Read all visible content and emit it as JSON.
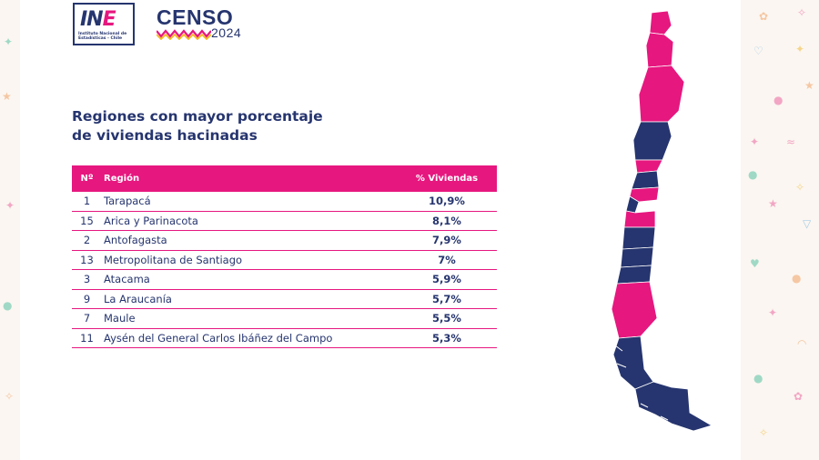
{
  "logos": {
    "ine_mark": "INE",
    "ine_subtitle": "Instituto Nacional de Estadísticas - Chile",
    "censo_word": "CENSO",
    "censo_year": "2024"
  },
  "title": {
    "line1": "Regiones con mayor porcentaje",
    "line2": "de viviendas hacinadas"
  },
  "table": {
    "headers": {
      "num": "Nº",
      "region": "Región",
      "pct": "% Viviendas"
    },
    "rows": [
      {
        "num": "1",
        "region": "Tarapacá",
        "pct": "10,9%"
      },
      {
        "num": "15",
        "region": "Arica y Parinacota",
        "pct": "8,1%"
      },
      {
        "num": "2",
        "region": "Antofagasta",
        "pct": "7,9%"
      },
      {
        "num": "13",
        "region": "Metropolitana de Santiago",
        "pct": "7%"
      },
      {
        "num": "3",
        "region": "Atacama",
        "pct": "5,9%"
      },
      {
        "num": "9",
        "region": "La Araucanía",
        "pct": "5,7%"
      },
      {
        "num": "7",
        "region": "Maule",
        "pct": "5,5%"
      },
      {
        "num": "11",
        "region": "Aysén del General Carlos Ibáñez del Campo",
        "pct": "5,3%"
      }
    ]
  },
  "colors": {
    "navy": "#26356f",
    "magenta": "#e6177f"
  },
  "icons": [
    "chile-map-icon",
    "confetti-decoration"
  ]
}
